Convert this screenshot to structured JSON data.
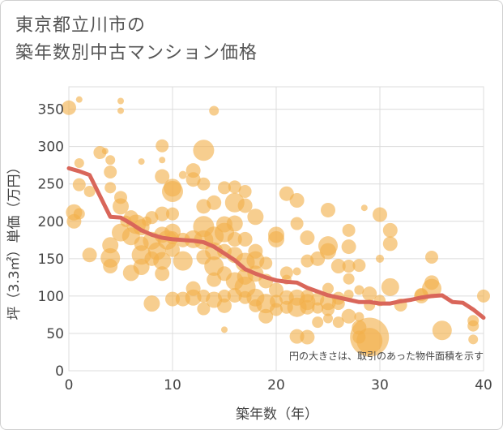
{
  "title_lines": [
    "東京都立川市の",
    "築年数別中古マンション価格"
  ],
  "chart_data": {
    "type": "scatter",
    "xlabel": "築年数（年）",
    "ylabel": "坪（3.3㎡）単価（万円）",
    "xlim": [
      0,
      40
    ],
    "ylim": [
      0,
      380
    ],
    "xticks": [
      0,
      10,
      20,
      30,
      40
    ],
    "yticks": [
      0,
      50,
      100,
      150,
      200,
      250,
      300,
      350
    ],
    "grid": true,
    "annotation": "円の大きさは、取引のあった物件面積を示す",
    "bubble_color": "#f2b04a",
    "line_color": "#d9665a",
    "points": [
      [
        0,
        352,
        9
      ],
      [
        1,
        363,
        4
      ],
      [
        1,
        278,
        6
      ],
      [
        1,
        249,
        8
      ],
      [
        0.5,
        212,
        10
      ],
      [
        0.5,
        200,
        9
      ],
      [
        1,
        210,
        7
      ],
      [
        2,
        240,
        7
      ],
      [
        2,
        155,
        9
      ],
      [
        3,
        292,
        8
      ],
      [
        3.5,
        294,
        4
      ],
      [
        4,
        282,
        6
      ],
      [
        4,
        266,
        8
      ],
      [
        4,
        245,
        7
      ],
      [
        4,
        168,
        10
      ],
      [
        4,
        151,
        12
      ],
      [
        4,
        140,
        9
      ],
      [
        5,
        361,
        4
      ],
      [
        5,
        348,
        4
      ],
      [
        5,
        232,
        8
      ],
      [
        5,
        220,
        10
      ],
      [
        5,
        185,
        11
      ],
      [
        5.5,
        200,
        7
      ],
      [
        6,
        205,
        9
      ],
      [
        6,
        180,
        11
      ],
      [
        6,
        131,
        10
      ],
      [
        6.5,
        196,
        12
      ],
      [
        7,
        192,
        10
      ],
      [
        7,
        170,
        9
      ],
      [
        7,
        155,
        12
      ],
      [
        7,
        139,
        10
      ],
      [
        7,
        280,
        4
      ],
      [
        7.5,
        200,
        6
      ],
      [
        8,
        205,
        8
      ],
      [
        8,
        174,
        11
      ],
      [
        8,
        150,
        9
      ],
      [
        8,
        90,
        10
      ],
      [
        8.5,
        160,
        11
      ],
      [
        9,
        301,
        8
      ],
      [
        9,
        282,
        4
      ],
      [
        9,
        260,
        9
      ],
      [
        9,
        210,
        9
      ],
      [
        9,
        182,
        10
      ],
      [
        9,
        147,
        11
      ],
      [
        9,
        130,
        9
      ],
      [
        9.5,
        175,
        12
      ],
      [
        10,
        245,
        11
      ],
      [
        10,
        240,
        13
      ],
      [
        10,
        210,
        8
      ],
      [
        10,
        186,
        10
      ],
      [
        10,
        178,
        8
      ],
      [
        10,
        162,
        9
      ],
      [
        10,
        96,
        9
      ],
      [
        11,
        262,
        5
      ],
      [
        11,
        175,
        9
      ],
      [
        11,
        147,
        12
      ],
      [
        11,
        96,
        9
      ],
      [
        12,
        268,
        9
      ],
      [
        12,
        256,
        9
      ],
      [
        12,
        176,
        11
      ],
      [
        12,
        110,
        9
      ],
      [
        12,
        98,
        10
      ],
      [
        13,
        295,
        13
      ],
      [
        13,
        250,
        8
      ],
      [
        13,
        220,
        9
      ],
      [
        13,
        193,
        13
      ],
      [
        13,
        175,
        12
      ],
      [
        13,
        152,
        9
      ],
      [
        13,
        100,
        8
      ],
      [
        13,
        83,
        8
      ],
      [
        14,
        348,
        6
      ],
      [
        14,
        225,
        9
      ],
      [
        14,
        180,
        12
      ],
      [
        14,
        160,
        11
      ],
      [
        14,
        140,
        12
      ],
      [
        14,
        122,
        9
      ],
      [
        14,
        95,
        10
      ],
      [
        15,
        245,
        8
      ],
      [
        15,
        196,
        10
      ],
      [
        15,
        185,
        12
      ],
      [
        15,
        160,
        9
      ],
      [
        15,
        130,
        9
      ],
      [
        15,
        100,
        8
      ],
      [
        15,
        87,
        9
      ],
      [
        15,
        55,
        4
      ],
      [
        16,
        246,
        8
      ],
      [
        16,
        225,
        12
      ],
      [
        16,
        197,
        10
      ],
      [
        16,
        176,
        9
      ],
      [
        16,
        155,
        10
      ],
      [
        16,
        120,
        11
      ],
      [
        16,
        101,
        9
      ],
      [
        17,
        240,
        8
      ],
      [
        17,
        221,
        9
      ],
      [
        17,
        176,
        9
      ],
      [
        17,
        145,
        12
      ],
      [
        17,
        126,
        10
      ],
      [
        17,
        112,
        13
      ],
      [
        17,
        98,
        8
      ],
      [
        18,
        206,
        10
      ],
      [
        18,
        160,
        9
      ],
      [
        18,
        148,
        11
      ],
      [
        18,
        130,
        10
      ],
      [
        18,
        98,
        11
      ],
      [
        18,
        87,
        8
      ],
      [
        19,
        144,
        8
      ],
      [
        19,
        120,
        9
      ],
      [
        19,
        90,
        12
      ],
      [
        19,
        73,
        9
      ],
      [
        20,
        182,
        10
      ],
      [
        20,
        176,
        10
      ],
      [
        20,
        108,
        9
      ],
      [
        20,
        93,
        8
      ],
      [
        20,
        82,
        8
      ],
      [
        21,
        237,
        9
      ],
      [
        21,
        131,
        8
      ],
      [
        21,
        122,
        6
      ],
      [
        21,
        98,
        9
      ],
      [
        21,
        85,
        8
      ],
      [
        22,
        228,
        9
      ],
      [
        22,
        197,
        8
      ],
      [
        22,
        98,
        10
      ],
      [
        22,
        85,
        12
      ],
      [
        22,
        46,
        9
      ],
      [
        22,
        133,
        5
      ],
      [
        23,
        178,
        9
      ],
      [
        23,
        147,
        8
      ],
      [
        23,
        100,
        8
      ],
      [
        23,
        92,
        10
      ],
      [
        23,
        85,
        9
      ],
      [
        23,
        45,
        9
      ],
      [
        24,
        150,
        9
      ],
      [
        24,
        96,
        8
      ],
      [
        24,
        84,
        7
      ],
      [
        24,
        65,
        7
      ],
      [
        25,
        215,
        9
      ],
      [
        25,
        167,
        12
      ],
      [
        25,
        160,
        10
      ],
      [
        25,
        110,
        7
      ],
      [
        25,
        92,
        10
      ],
      [
        25,
        82,
        8
      ],
      [
        25,
        70,
        6
      ],
      [
        26,
        140,
        9
      ],
      [
        26,
        97,
        8
      ],
      [
        26,
        90,
        8
      ],
      [
        26,
        65,
        7
      ],
      [
        27,
        188,
        8
      ],
      [
        27,
        166,
        9
      ],
      [
        27,
        140,
        8
      ],
      [
        27,
        123,
        7
      ],
      [
        27,
        102,
        6
      ],
      [
        27,
        73,
        9
      ],
      [
        28,
        141,
        8
      ],
      [
        28,
        108,
        6
      ],
      [
        28,
        72,
        6
      ],
      [
        28,
        58,
        9
      ],
      [
        28,
        45,
        8
      ],
      [
        28.5,
        218,
        4
      ],
      [
        29,
        103,
        9
      ],
      [
        29,
        88,
        7
      ],
      [
        29,
        45,
        24
      ],
      [
        29,
        40,
        16
      ],
      [
        30,
        209,
        9
      ],
      [
        30,
        150,
        5
      ],
      [
        30,
        94,
        7
      ],
      [
        31,
        188,
        9
      ],
      [
        31,
        170,
        9
      ],
      [
        31,
        112,
        11
      ],
      [
        32,
        88,
        8
      ],
      [
        34,
        100,
        9
      ],
      [
        34,
        102,
        8
      ],
      [
        35,
        118,
        9
      ],
      [
        35,
        110,
        12
      ],
      [
        35,
        152,
        8
      ],
      [
        36,
        54,
        12
      ],
      [
        39,
        67,
        7
      ],
      [
        39,
        60,
        7
      ],
      [
        39,
        42,
        6
      ],
      [
        40,
        100,
        8
      ]
    ],
    "trend_line": [
      [
        0,
        271
      ],
      [
        1,
        267
      ],
      [
        2,
        262
      ],
      [
        3,
        234
      ],
      [
        4,
        206
      ],
      [
        5,
        205
      ],
      [
        6,
        197
      ],
      [
        7,
        188
      ],
      [
        8,
        182
      ],
      [
        9,
        178
      ],
      [
        10,
        176
      ],
      [
        11,
        175
      ],
      [
        12,
        174
      ],
      [
        13,
        172
      ],
      [
        14,
        166
      ],
      [
        15,
        157
      ],
      [
        16,
        148
      ],
      [
        17,
        136
      ],
      [
        18,
        130
      ],
      [
        19,
        125
      ],
      [
        20,
        121
      ],
      [
        21,
        119
      ],
      [
        22,
        118
      ],
      [
        23,
        111
      ],
      [
        24,
        106
      ],
      [
        25,
        101
      ],
      [
        26,
        98
      ],
      [
        27,
        95
      ],
      [
        28,
        92
      ],
      [
        29,
        92
      ],
      [
        30,
        90
      ],
      [
        31,
        90
      ],
      [
        32,
        93
      ],
      [
        33,
        95
      ],
      [
        34,
        98
      ],
      [
        35,
        100
      ],
      [
        36,
        101
      ],
      [
        37,
        92
      ],
      [
        38,
        91
      ],
      [
        39,
        82
      ],
      [
        40,
        71
      ]
    ]
  }
}
